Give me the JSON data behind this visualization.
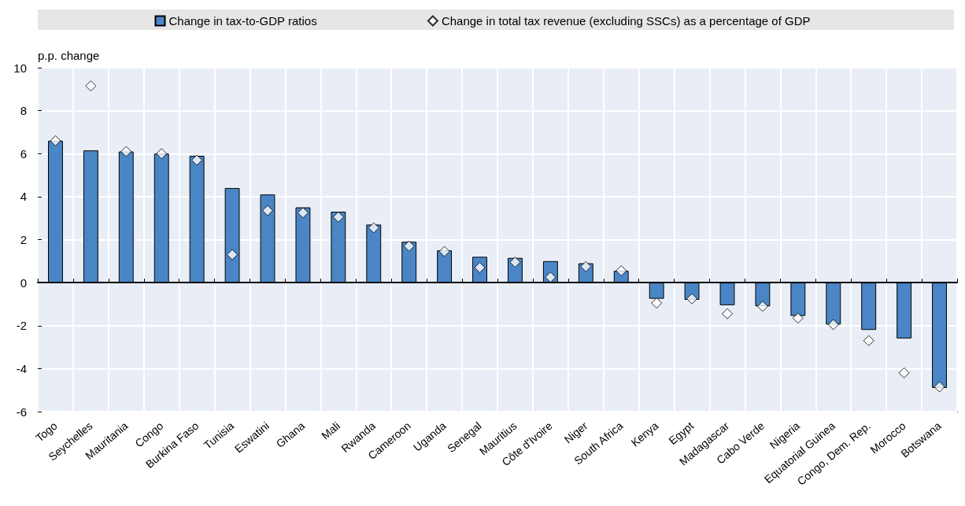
{
  "chart_data": {
    "type": "bar",
    "ylabel": "p.p. change",
    "categories": [
      "Togo",
      "Seychelles",
      "Mauritania",
      "Congo",
      "Burkina Faso",
      "Tunisia",
      "Eswatini",
      "Ghana",
      "Mali",
      "Rwanda",
      "Cameroon",
      "Uganda",
      "Senegal",
      "Mauritius",
      "Côte d'Ivoire",
      "Niger",
      "South Africa",
      "Kenya",
      "Egypt",
      "Madagascar",
      "Cabo Verde",
      "Nigeria",
      "Equatorial Guinea",
      "Congo, Dem. Rep.",
      "Morocco",
      "Botswana"
    ],
    "series": [
      {
        "name": "Change in tax-to-GDP ratios",
        "color": "#4a86c6",
        "values": [
          6.6,
          6.15,
          6.1,
          6.0,
          5.9,
          4.4,
          4.1,
          3.5,
          3.3,
          2.7,
          1.9,
          1.5,
          1.2,
          1.15,
          1.0,
          0.9,
          0.55,
          -0.75,
          -0.8,
          -1.05,
          -1.1,
          -1.55,
          -1.95,
          -2.2,
          -2.6,
          -4.9
        ]
      },
      {
        "name": "Change in total tax revenue (excluding SSCs) as a percentage of GDP",
        "type": "scatter",
        "color": "#ffffff",
        "marker": "diamond",
        "values": [
          6.6,
          9.15,
          6.1,
          6.0,
          5.7,
          1.3,
          3.35,
          3.25,
          3.05,
          2.55,
          1.7,
          1.45,
          0.7,
          0.95,
          0.25,
          0.75,
          0.55,
          -0.95,
          -0.75,
          -1.45,
          -1.1,
          -1.65,
          -1.95,
          -2.7,
          -4.2,
          -4.85
        ]
      }
    ],
    "ylim": [
      -6,
      10
    ],
    "yticks": [
      -6,
      -4,
      -2,
      0,
      2,
      4,
      6,
      8,
      10
    ],
    "grid": true,
    "legend": "top"
  }
}
